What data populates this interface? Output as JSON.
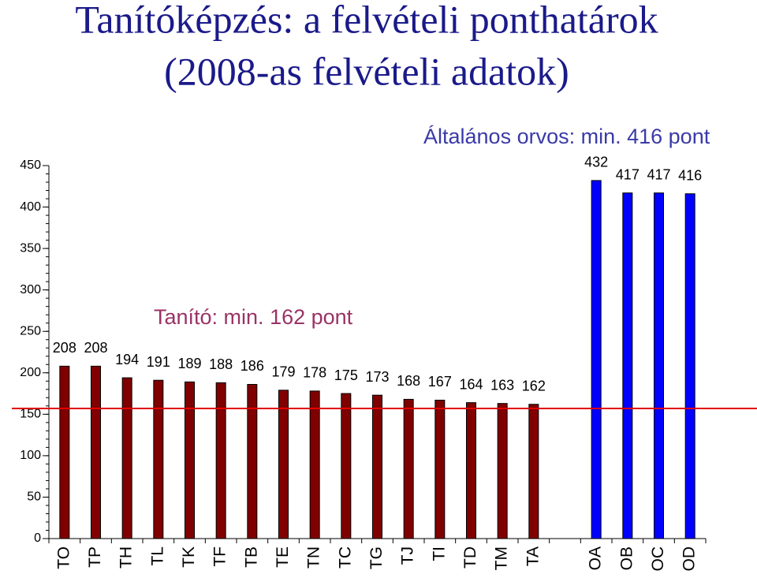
{
  "chart_data": {
    "type": "bar",
    "title": [
      "Tanítóképzés: a felvételi ponthatárok",
      "(2008-as felvételi adatok)"
    ],
    "annotations": [
      "Tanító: min. 162 pont",
      "Általános orvos: min. 416 pont"
    ],
    "categories": [
      "TO",
      "TP",
      "TH",
      "TL",
      "TK",
      "TF",
      "TB",
      "TE",
      "TN",
      "TC",
      "TG",
      "TJ",
      "TI",
      "TD",
      "TM",
      "TA",
      null,
      "OA",
      "OB",
      "OC",
      "OD"
    ],
    "values": [
      208,
      208,
      194,
      191,
      189,
      188,
      186,
      179,
      178,
      175,
      173,
      168,
      167,
      164,
      163,
      162,
      null,
      432,
      417,
      417,
      416
    ],
    "colors": [
      "#800000",
      "#800000",
      "#800000",
      "#800000",
      "#800000",
      "#800000",
      "#800000",
      "#800000",
      "#800000",
      "#800000",
      "#800000",
      "#800000",
      "#800000",
      "#800000",
      "#800000",
      "#800000",
      null,
      "#0000ff",
      "#0000ff",
      "#0000ff",
      "#0000ff"
    ],
    "reference_line": {
      "value": 157,
      "color": "#e00000"
    },
    "ylim": [
      0,
      450
    ],
    "yticks": [
      0,
      50,
      100,
      150,
      200,
      250,
      300,
      350,
      400,
      450
    ],
    "grid": false
  }
}
